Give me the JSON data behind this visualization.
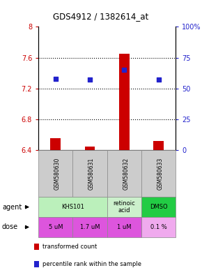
{
  "title": "GDS4912 / 1382614_at",
  "samples": [
    "GSM580630",
    "GSM580631",
    "GSM580632",
    "GSM580633"
  ],
  "bar_values": [
    6.55,
    6.45,
    7.65,
    6.52
  ],
  "bar_baseline": 6.4,
  "percentile_values": [
    58,
    57,
    65,
    57
  ],
  "ylim_left": [
    6.4,
    8.0
  ],
  "ylim_right": [
    0,
    100
  ],
  "yticks_left": [
    6.4,
    6.8,
    7.2,
    7.6,
    8.0
  ],
  "ytick_labels_left": [
    "6.4",
    "6.8",
    "7.2",
    "7.6",
    "8"
  ],
  "yticks_right": [
    0,
    25,
    50,
    75,
    100
  ],
  "ytick_labels_right": [
    "0",
    "25",
    "50",
    "75",
    "100%"
  ],
  "bar_color": "#cc0000",
  "dot_color": "#2222cc",
  "agent_info": [
    {
      "c0": 0,
      "c1": 2,
      "text": "KHS101",
      "color": "#bbf0bb"
    },
    {
      "c0": 2,
      "c1": 3,
      "text": "retinoic\nacid",
      "color": "#ccf0cc"
    },
    {
      "c0": 3,
      "c1": 4,
      "text": "DMSO",
      "color": "#22cc44"
    }
  ],
  "dose_labels": [
    "5 uM",
    "1.7 uM",
    "1 uM",
    "0.1 %"
  ],
  "dose_colors": [
    "#dd55dd",
    "#dd55dd",
    "#dd55dd",
    "#f0aaee"
  ],
  "legend_items": [
    "transformed count",
    "percentile rank within the sample"
  ],
  "legend_colors": [
    "#cc0000",
    "#2222cc"
  ],
  "left_tick_color": "#cc0000",
  "right_tick_color": "#2222cc",
  "sample_bg_color": "#cccccc",
  "sample_border_color": "#888888"
}
